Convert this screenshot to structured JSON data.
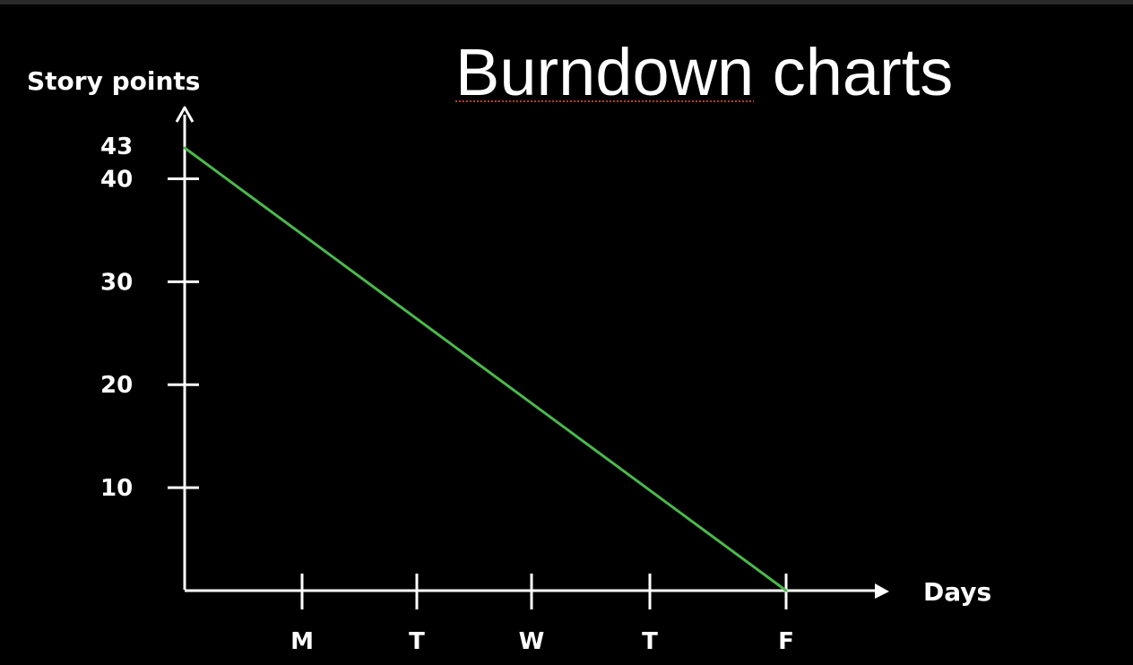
{
  "title_part1": "Burndown",
  "title_part2": " charts",
  "chart_data": {
    "type": "line",
    "title": "Burndown charts",
    "xlabel": "Days",
    "ylabel": "Story points",
    "categories": [
      "",
      "M",
      "T",
      "W",
      "T",
      "F"
    ],
    "y_ticks": [
      10,
      20,
      30,
      40
    ],
    "y_top_label": "43",
    "ylim": [
      0,
      43
    ],
    "series": [
      {
        "x": [
          0,
          5
        ],
        "y": [
          43,
          0
        ],
        "color": "#4cb84c"
      }
    ],
    "grid": false
  }
}
